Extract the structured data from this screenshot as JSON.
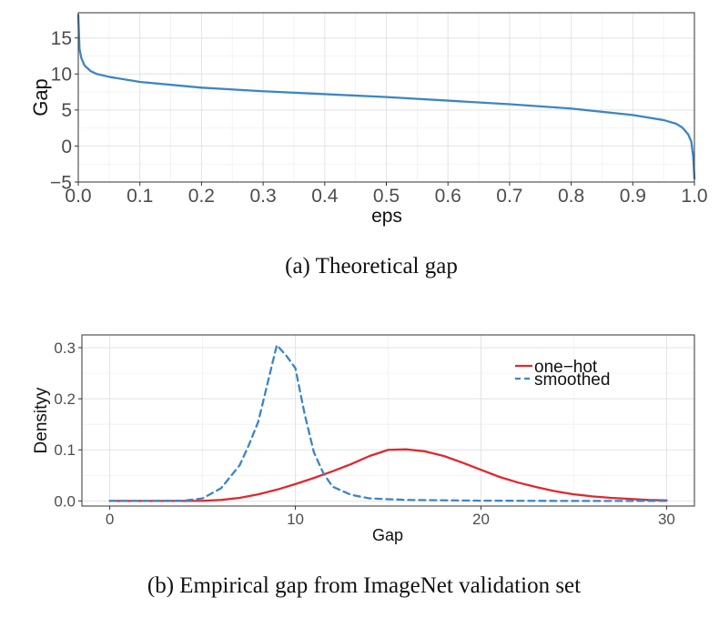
{
  "chart_data": [
    {
      "type": "line",
      "title": "",
      "xlabel": "eps",
      "ylabel": "Gap",
      "xlim": [
        0.0,
        1.0
      ],
      "ylim": [
        -5,
        18.5
      ],
      "x_ticks": [
        "0.0",
        "0.1",
        "0.2",
        "0.3",
        "0.4",
        "0.5",
        "0.6",
        "0.7",
        "0.8",
        "0.9",
        "1.0"
      ],
      "y_ticks": [
        "-5",
        "0",
        "5",
        "10",
        "15"
      ],
      "caption": "(a) Theoretical gap",
      "grid": true,
      "series": [
        {
          "name": "gap",
          "color": "#3d85c6",
          "dash": "solid",
          "x": [
            0.0,
            0.002,
            0.005,
            0.01,
            0.02,
            0.03,
            0.05,
            0.1,
            0.2,
            0.3,
            0.4,
            0.5,
            0.6,
            0.7,
            0.8,
            0.9,
            0.95,
            0.97,
            0.98,
            0.99,
            0.995,
            0.998,
            1.0
          ],
          "values": [
            18.2,
            13.5,
            12.2,
            11.2,
            10.4,
            10.0,
            9.6,
            8.9,
            8.1,
            7.6,
            7.2,
            6.8,
            6.3,
            5.8,
            5.2,
            4.3,
            3.6,
            3.1,
            2.6,
            1.6,
            0.6,
            -1.5,
            -4.5
          ]
        }
      ]
    },
    {
      "type": "line",
      "title": "",
      "xlabel": "Gap",
      "ylabel": "Densityy",
      "xlim": [
        -1.5,
        31.5
      ],
      "ylim": [
        -0.01,
        0.325
      ],
      "x_ticks": [
        "0",
        "10",
        "20",
        "30"
      ],
      "y_ticks": [
        "0.0",
        "0.1",
        "0.2",
        "0.3"
      ],
      "caption": "(b) Empirical gap from ImageNet validation set",
      "grid": true,
      "legend_position": "top-right",
      "series": [
        {
          "name": "one−hot",
          "color": "#e0282e",
          "dash": "solid",
          "x": [
            0,
            2,
            4,
            5,
            6,
            7,
            8,
            9,
            10,
            11,
            12,
            13,
            14,
            15,
            16,
            17,
            18,
            19,
            20,
            21,
            22,
            23,
            24,
            25,
            26,
            27,
            28,
            29,
            30
          ],
          "values": [
            0.0,
            0.0,
            0.0,
            0.0003,
            0.002,
            0.006,
            0.013,
            0.022,
            0.033,
            0.045,
            0.058,
            0.072,
            0.088,
            0.1,
            0.101,
            0.097,
            0.088,
            0.075,
            0.061,
            0.047,
            0.036,
            0.027,
            0.019,
            0.013,
            0.009,
            0.006,
            0.004,
            0.002,
            0.001
          ]
        },
        {
          "name": "smoothed",
          "color": "#3d85c6",
          "dash": "dashed",
          "x": [
            0,
            2,
            4,
            5,
            6,
            7,
            7.5,
            8,
            8.5,
            9,
            9.5,
            10,
            10.5,
            11,
            11.5,
            12,
            13,
            14,
            16,
            20,
            25,
            30
          ],
          "values": [
            0.0,
            0.0,
            0.0005,
            0.005,
            0.025,
            0.07,
            0.11,
            0.155,
            0.23,
            0.305,
            0.285,
            0.26,
            0.17,
            0.095,
            0.055,
            0.028,
            0.012,
            0.005,
            0.002,
            0.0005,
            0.0,
            0.0
          ]
        }
      ]
    }
  ]
}
